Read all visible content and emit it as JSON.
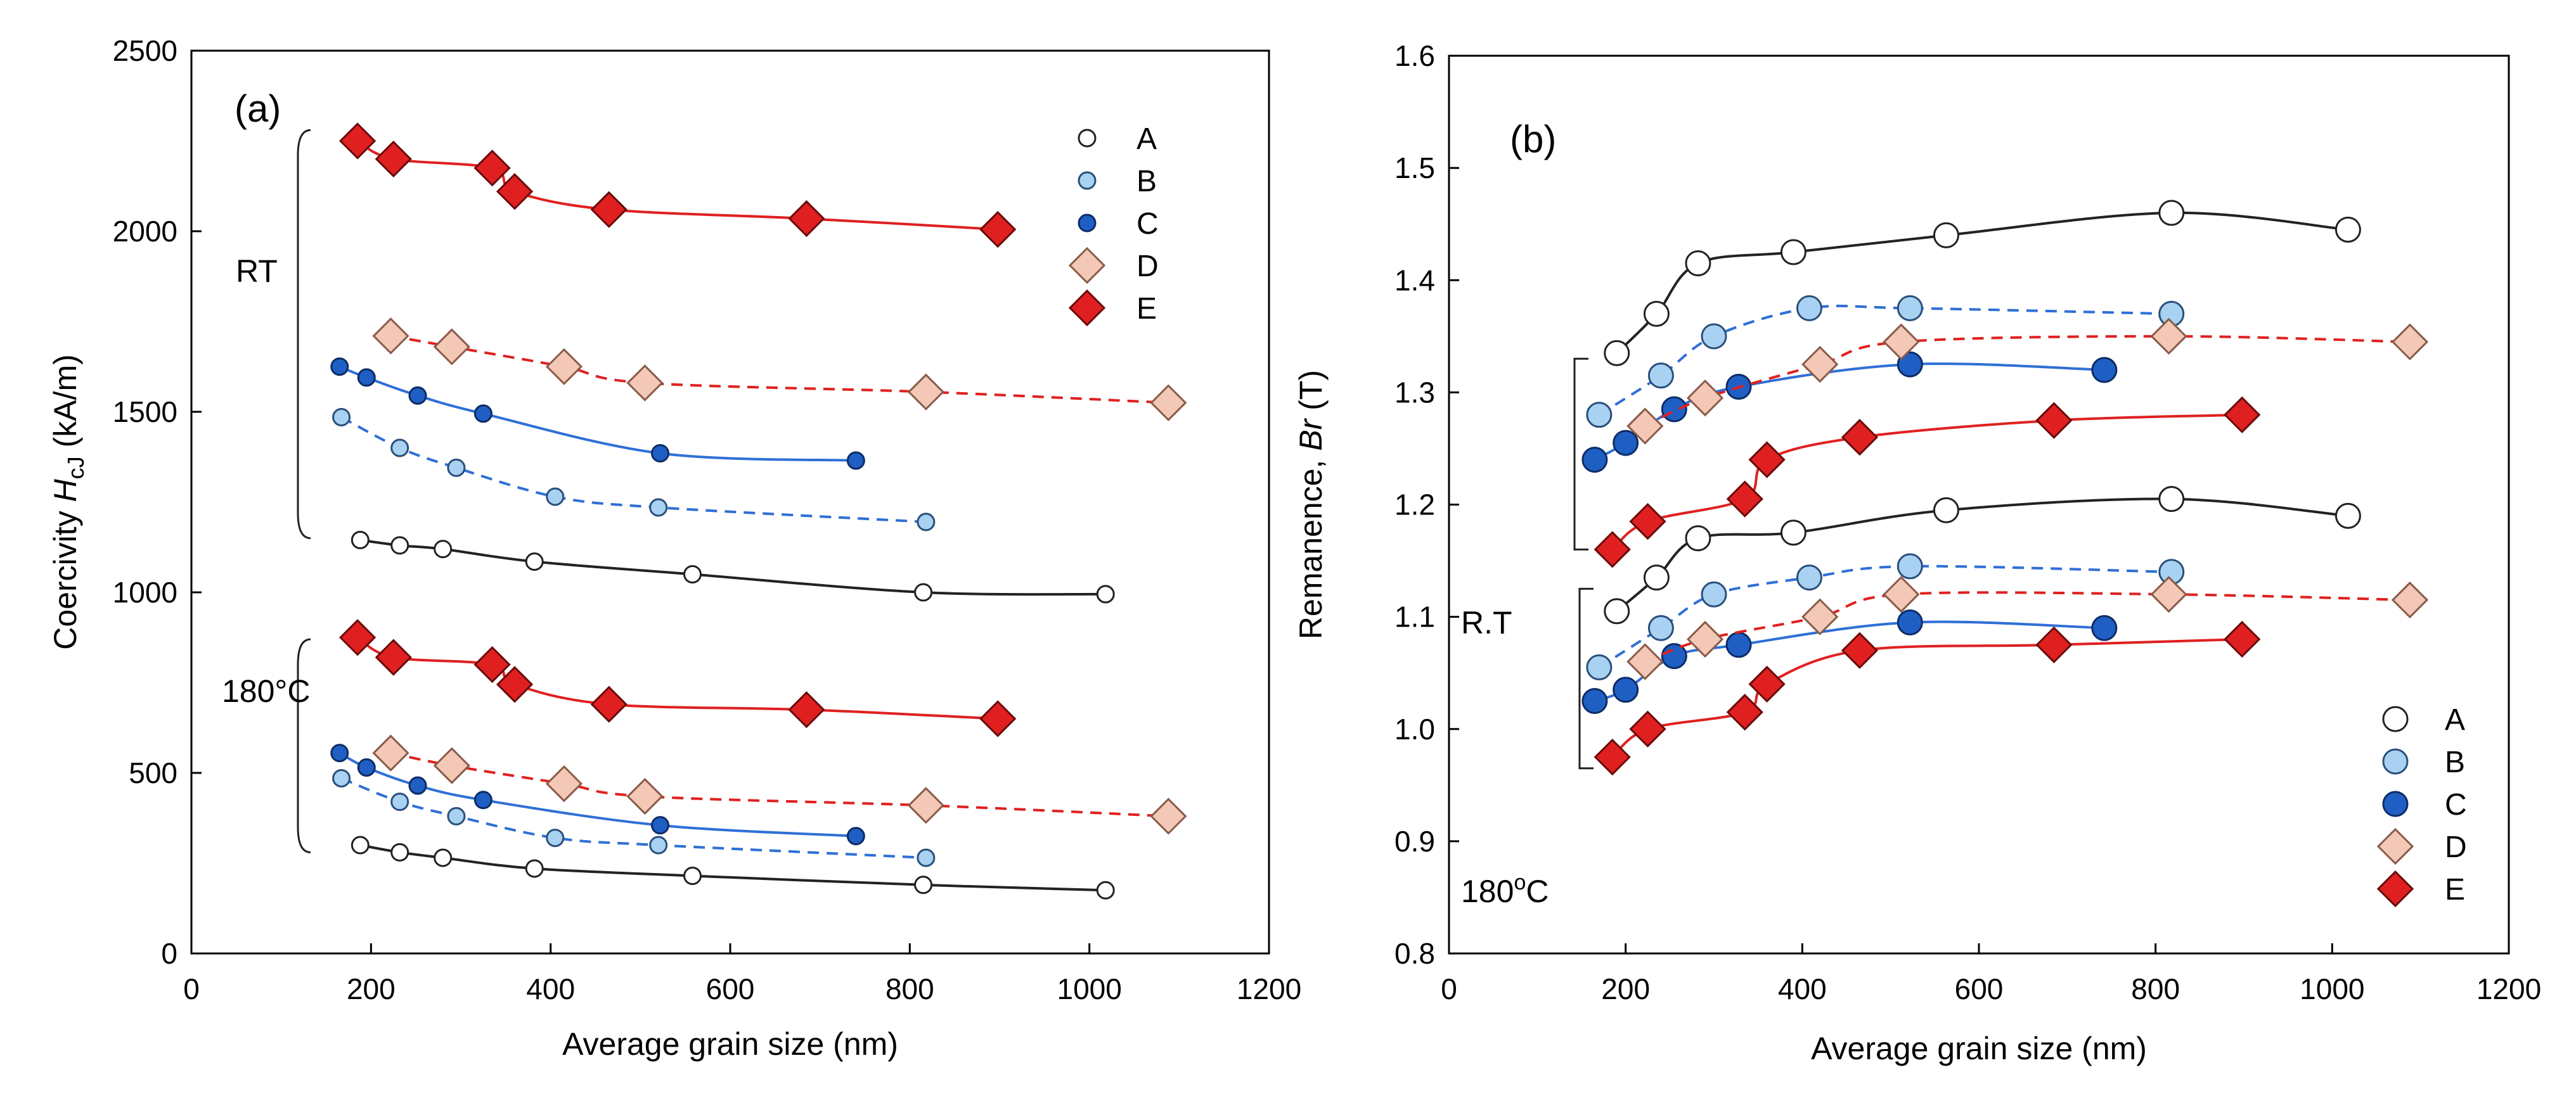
{
  "colors": {
    "A": {
      "fill": "#ffffff",
      "stroke": "#222222",
      "line": "#222222"
    },
    "B": {
      "fill": "#a9d2f2",
      "stroke": "#2a4f7a",
      "line": "#2f6fd6"
    },
    "C": {
      "fill": "#1f5fc4",
      "stroke": "#0d2c66",
      "line": "#2f6fd6"
    },
    "D": {
      "fill": "#f4c8b6",
      "stroke": "#8a5a48",
      "line": "#e02020"
    },
    "E": {
      "fill": "#e02020",
      "stroke": "#6a0a0a",
      "line": "#e02020"
    }
  },
  "chart_data": [
    {
      "type": "scatter",
      "panel_label": "(a)",
      "xlabel": "Average grain size (nm)",
      "ylabel_prefix": "Coercivity ",
      "ylabel_symbol": "H",
      "ylabel_subscript": "cJ",
      "ylabel_suffix": " (kA/m)",
      "xlim": [
        0,
        1200
      ],
      "ylim": [
        0,
        2500
      ],
      "xticks": [
        "0",
        "200",
        "400",
        "600",
        "800",
        "1000",
        "1200"
      ],
      "yticks": [
        "0",
        "500",
        "1000",
        "1500",
        "2000",
        "2500"
      ],
      "legend": [
        "A",
        "B",
        "C",
        "D",
        "E"
      ],
      "legend_position": "top-right",
      "groups": [
        {
          "label": "RT",
          "range": [
            1150,
            2280
          ]
        },
        {
          "label": "180°C",
          "range": [
            280,
            870
          ]
        }
      ],
      "series": [
        {
          "name": "A",
          "group": "RT",
          "marker": "circle-small",
          "line": "solid",
          "x": [
            188,
            232,
            280,
            382,
            558,
            815,
            1018
          ],
          "y": [
            1145,
            1130,
            1120,
            1085,
            1050,
            1000,
            995
          ]
        },
        {
          "name": "B",
          "group": "RT",
          "marker": "circle-small",
          "line": "dashed",
          "x": [
            167,
            232,
            295,
            405,
            520,
            818
          ],
          "y": [
            1485,
            1400,
            1345,
            1265,
            1235,
            1195
          ]
        },
        {
          "name": "C",
          "group": "RT",
          "marker": "circle-small",
          "line": "solid",
          "x": [
            165,
            195,
            252,
            325,
            522,
            740
          ],
          "y": [
            1625,
            1595,
            1545,
            1495,
            1385,
            1365
          ]
        },
        {
          "name": "D",
          "group": "RT",
          "marker": "diamond",
          "line": "dashed",
          "x": [
            222,
            290,
            415,
            505,
            818,
            1088
          ],
          "y": [
            1710,
            1680,
            1625,
            1580,
            1555,
            1525
          ]
        },
        {
          "name": "E",
          "group": "RT",
          "marker": "diamond",
          "line": "solid",
          "x": [
            185,
            225,
            335,
            360,
            465,
            685,
            898
          ],
          "y": [
            2250,
            2200,
            2175,
            2110,
            2060,
            2035,
            2005
          ]
        },
        {
          "name": "A",
          "group": "180°C",
          "marker": "circle-small",
          "line": "solid",
          "x": [
            188,
            232,
            280,
            382,
            558,
            815,
            1018
          ],
          "y": [
            300,
            280,
            265,
            235,
            215,
            190,
            175
          ]
        },
        {
          "name": "B",
          "group": "180°C",
          "marker": "circle-small",
          "line": "dashed",
          "x": [
            167,
            232,
            295,
            405,
            520,
            818
          ],
          "y": [
            485,
            420,
            380,
            320,
            300,
            265
          ]
        },
        {
          "name": "C",
          "group": "180°C",
          "marker": "circle-small",
          "line": "solid",
          "x": [
            165,
            195,
            252,
            325,
            522,
            740
          ],
          "y": [
            555,
            515,
            465,
            425,
            355,
            325
          ]
        },
        {
          "name": "D",
          "group": "180°C",
          "marker": "diamond",
          "line": "dashed",
          "x": [
            222,
            290,
            415,
            505,
            818,
            1088
          ],
          "y": [
            555,
            520,
            470,
            435,
            410,
            380
          ]
        },
        {
          "name": "E",
          "group": "180°C",
          "marker": "diamond",
          "line": "solid",
          "x": [
            185,
            225,
            335,
            360,
            465,
            685,
            898
          ],
          "y": [
            875,
            820,
            800,
            745,
            690,
            675,
            650
          ]
        }
      ]
    },
    {
      "type": "scatter",
      "panel_label": "(b)",
      "xlabel": "Average grain size (nm)",
      "ylabel_prefix": "Remanence, ",
      "ylabel_symbol": "Br",
      "ylabel_subscript": "",
      "ylabel_suffix": " (T)",
      "xlim": [
        0,
        1200
      ],
      "ylim": [
        0.8,
        1.6
      ],
      "xticks": [
        "0",
        "200",
        "400",
        "600",
        "800",
        "1000",
        "1200"
      ],
      "yticks": [
        "0.8",
        "0.9",
        "1.0",
        "1.1",
        "1.2",
        "1.3",
        "1.4",
        "1.5",
        "1.6"
      ],
      "legend": [
        "A",
        "B",
        "C",
        "D",
        "E"
      ],
      "legend_position": "bottom-right",
      "groups": [
        {
          "label": "R.T",
          "range": [
            1.16,
            1.33
          ]
        },
        {
          "label": "180",
          "superscript": "o",
          "label_suffix": "C",
          "range": [
            0.965,
            1.125
          ]
        }
      ],
      "series": [
        {
          "name": "A",
          "group": "R.T",
          "marker": "circle",
          "line": "solid",
          "x": [
            190,
            235,
            282,
            390,
            563,
            818,
            1018
          ],
          "y": [
            1.335,
            1.37,
            1.415,
            1.425,
            1.44,
            1.46,
            1.445
          ]
        },
        {
          "name": "B",
          "group": "R.T",
          "marker": "circle",
          "line": "dashed",
          "x": [
            170,
            240,
            300,
            408,
            522,
            818
          ],
          "y": [
            1.28,
            1.315,
            1.35,
            1.375,
            1.375,
            1.37
          ]
        },
        {
          "name": "C",
          "group": "R.T",
          "marker": "circle",
          "line": "solid",
          "x": [
            165,
            200,
            255,
            328,
            522,
            742
          ],
          "y": [
            1.24,
            1.255,
            1.285,
            1.305,
            1.325,
            1.32
          ]
        },
        {
          "name": "D",
          "group": "R.T",
          "marker": "diamond",
          "line": "dashed",
          "x": [
            222,
            290,
            420,
            512,
            815,
            1088
          ],
          "y": [
            1.27,
            1.295,
            1.325,
            1.345,
            1.35,
            1.345
          ]
        },
        {
          "name": "E",
          "group": "R.T",
          "marker": "diamond",
          "line": "solid",
          "x": [
            185,
            225,
            335,
            360,
            465,
            685,
            898
          ],
          "y": [
            1.16,
            1.185,
            1.205,
            1.24,
            1.26,
            1.275,
            1.28
          ]
        },
        {
          "name": "A",
          "group": "180C",
          "marker": "circle",
          "line": "solid",
          "x": [
            190,
            235,
            282,
            390,
            563,
            818,
            1018
          ],
          "y": [
            1.105,
            1.135,
            1.17,
            1.175,
            1.195,
            1.205,
            1.19
          ]
        },
        {
          "name": "B",
          "group": "180C",
          "marker": "circle",
          "line": "dashed",
          "x": [
            170,
            240,
            300,
            408,
            522,
            818
          ],
          "y": [
            1.055,
            1.09,
            1.12,
            1.135,
            1.145,
            1.14
          ]
        },
        {
          "name": "C",
          "group": "180C",
          "marker": "circle",
          "line": "solid",
          "x": [
            165,
            200,
            255,
            328,
            522,
            742
          ],
          "y": [
            1.025,
            1.035,
            1.065,
            1.075,
            1.095,
            1.09
          ]
        },
        {
          "name": "D",
          "group": "180C",
          "marker": "diamond",
          "line": "dashed",
          "x": [
            222,
            290,
            420,
            512,
            815,
            1088
          ],
          "y": [
            1.06,
            1.08,
            1.1,
            1.12,
            1.12,
            1.115
          ]
        },
        {
          "name": "E",
          "group": "180C",
          "marker": "diamond",
          "line": "solid",
          "x": [
            185,
            225,
            335,
            360,
            465,
            685,
            898
          ],
          "y": [
            0.975,
            1.0,
            1.015,
            1.04,
            1.07,
            1.075,
            1.08
          ]
        }
      ]
    }
  ]
}
